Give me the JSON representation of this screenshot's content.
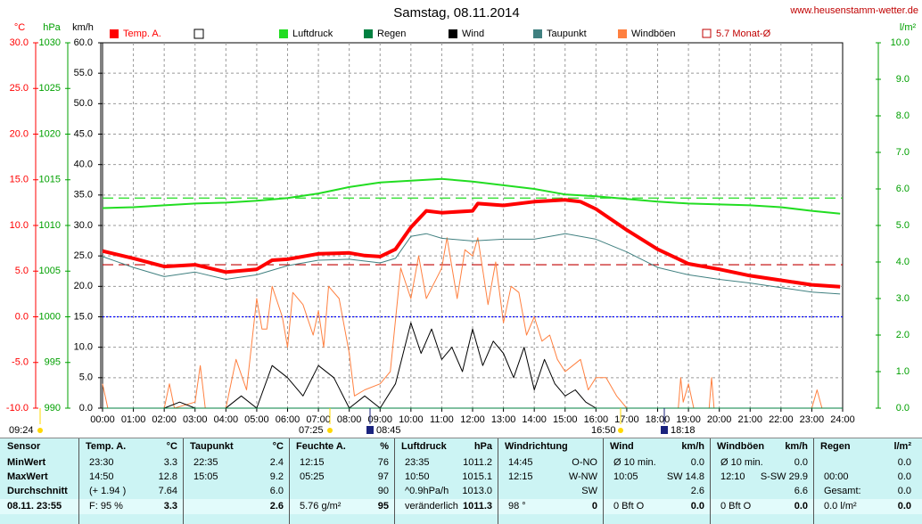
{
  "chart_data": {
    "type": "line",
    "title": "Samstag, 08.11.2014",
    "site": "www.heusenstamm-wetter.de",
    "xlim": [
      0,
      24
    ],
    "xticks": [
      {
        "value": 0,
        "label": "00:00"
      },
      {
        "value": 1,
        "label": "01:00"
      },
      {
        "value": 2,
        "label": "02:00"
      },
      {
        "value": 3,
        "label": "03:00"
      },
      {
        "value": 4,
        "label": "04:00"
      },
      {
        "value": 5,
        "label": "05:00"
      },
      {
        "value": 6,
        "label": "06:00"
      },
      {
        "value": 7,
        "label": "07:00"
      },
      {
        "value": 8,
        "label": "08:00"
      },
      {
        "value": 9,
        "label": "09:00"
      },
      {
        "value": 10,
        "label": "10:00"
      },
      {
        "value": 11,
        "label": "11:00"
      },
      {
        "value": 12,
        "label": "12:00"
      },
      {
        "value": 13,
        "label": "13:00"
      },
      {
        "value": 14,
        "label": "14:00"
      },
      {
        "value": 15,
        "label": "15:00"
      },
      {
        "value": 16,
        "label": "16:00"
      },
      {
        "value": 17,
        "label": "17:00"
      },
      {
        "value": 18,
        "label": "18:00"
      },
      {
        "value": 19,
        "label": "19:00"
      },
      {
        "value": 20,
        "label": "20:00"
      },
      {
        "value": 21,
        "label": "21:00"
      },
      {
        "value": 22,
        "label": "22:00"
      },
      {
        "value": 23,
        "label": "23:00"
      },
      {
        "value": 24,
        "label": "24:00"
      }
    ],
    "grid": true,
    "axes": {
      "temp": {
        "label": "°C",
        "color": "#ff0000",
        "lim": [
          -10,
          30
        ],
        "ticks": [
          {
            "value": 30,
            "label": "30.0"
          },
          {
            "value": 25,
            "label": "25.0"
          },
          {
            "value": 20,
            "label": "20.0"
          },
          {
            "value": 15,
            "label": "15.0"
          },
          {
            "value": 10,
            "label": "10.0"
          },
          {
            "value": 5,
            "label": "5.0"
          },
          {
            "value": 0,
            "label": "0.0"
          },
          {
            "value": -5,
            "label": "-5.0"
          },
          {
            "value": -10,
            "label": "-10.0"
          }
        ]
      },
      "hpa": {
        "label": "hPa",
        "color": "#00a000",
        "lim": [
          990,
          1030
        ],
        "ticks": [
          1030,
          1025,
          1020,
          1015,
          1010,
          1005,
          1000,
          995,
          990
        ]
      },
      "kmh": {
        "label": "km/h",
        "color": "#000000",
        "lim": [
          0,
          60
        ],
        "ticks": [
          {
            "value": 60,
            "label": "60.0"
          },
          {
            "value": 55,
            "label": "55.0"
          },
          {
            "value": 50,
            "label": "50.0"
          },
          {
            "value": 45,
            "label": "45.0"
          },
          {
            "value": 40,
            "label": "40.0"
          },
          {
            "value": 35,
            "label": "35.0"
          },
          {
            "value": 30,
            "label": "30.0"
          },
          {
            "value": 25,
            "label": "25.0"
          },
          {
            "value": 20,
            "label": "20.0"
          },
          {
            "value": 15,
            "label": "15.0"
          },
          {
            "value": 10,
            "label": "10.0"
          },
          {
            "value": 5,
            "label": "5.0"
          },
          {
            "value": 0,
            "label": "0.0"
          }
        ]
      },
      "rain": {
        "label": "l/m²",
        "color": "#00a000",
        "lim": [
          0,
          10
        ],
        "ticks": [
          {
            "value": 10,
            "label": "10.0"
          },
          {
            "value": 9,
            "label": "9.0"
          },
          {
            "value": 8,
            "label": "8.0"
          },
          {
            "value": 7,
            "label": "7.0"
          },
          {
            "value": 6,
            "label": "6.0"
          },
          {
            "value": 5,
            "label": "5.0"
          },
          {
            "value": 4,
            "label": "4.0"
          },
          {
            "value": 3,
            "label": "3.0"
          },
          {
            "value": 2,
            "label": "2.0"
          },
          {
            "value": 1,
            "label": "1.0"
          },
          {
            "value": 0,
            "label": "0.0"
          }
        ]
      }
    },
    "series": [
      {
        "name": "Windböen",
        "color": "#ff8040",
        "axis": "kmh",
        "width": 1,
        "x": [
          0,
          0.17,
          2,
          2.17,
          2.33,
          3,
          3.17,
          3.33,
          4,
          4.33,
          4.67,
          5,
          5.17,
          5.33,
          5.5,
          5.83,
          6,
          6.17,
          6.5,
          6.83,
          7,
          7.17,
          7.33,
          7.67,
          8,
          8.17,
          8.5,
          9,
          9.33,
          9.67,
          10,
          10.25,
          10.5,
          11,
          11.17,
          11.5,
          11.75,
          12,
          12.17,
          12.5,
          12.75,
          13,
          13.25,
          13.5,
          13.75,
          14,
          14.25,
          14.5,
          14.75,
          15,
          15.25,
          15.5,
          15.75,
          16,
          16.33,
          16.67,
          17,
          18.67,
          18.75,
          18.83,
          19,
          19.17,
          19.67,
          19.75,
          19.83,
          23,
          23.17,
          23.33,
          24
        ],
        "values": [
          4,
          0,
          0,
          4,
          0,
          1,
          7,
          0,
          0,
          8,
          3,
          18,
          13,
          13,
          20,
          15,
          10,
          19,
          17,
          12,
          16,
          10,
          20,
          18,
          9,
          2,
          3,
          4,
          6,
          23,
          18,
          25,
          18,
          23,
          28,
          18,
          26,
          25,
          28,
          17,
          24,
          14,
          20,
          19,
          12,
          15,
          11,
          12,
          8,
          6,
          7,
          8,
          3,
          5,
          5,
          2,
          0,
          0,
          5,
          1,
          4,
          0,
          0,
          5,
          0,
          0,
          3,
          0,
          0
        ]
      },
      {
        "name": "Wind",
        "color": "#000000",
        "axis": "kmh",
        "width": 1,
        "x": [
          0,
          2,
          2.5,
          3,
          4,
          4.5,
          5,
          5.5,
          6,
          6.5,
          7,
          7.5,
          8,
          8.5,
          9,
          9.5,
          10,
          10.33,
          10.67,
          11,
          11.33,
          11.67,
          12,
          12.33,
          12.67,
          13,
          13.33,
          13.67,
          14,
          14.33,
          14.67,
          15,
          15.33,
          15.67,
          16,
          24
        ],
        "values": [
          0,
          0,
          1,
          0,
          0,
          2,
          0,
          7,
          5,
          2,
          7,
          5,
          0,
          2,
          0,
          4,
          14,
          9,
          13,
          8,
          10,
          6,
          13,
          7,
          11,
          9,
          5,
          10,
          3,
          8,
          4,
          2,
          3,
          1,
          0,
          0
        ]
      },
      {
        "name": "Regen",
        "color": "#008040",
        "axis": "rain",
        "width": 1,
        "x": [
          0,
          24
        ],
        "values": [
          0,
          0
        ]
      },
      {
        "name": "Taupunkt",
        "color": "#408080",
        "axis": "temp",
        "width": 1,
        "x": [
          0,
          1,
          2,
          3,
          4,
          5,
          6,
          7,
          8,
          9,
          9.5,
          10,
          10.5,
          11,
          12,
          13,
          14,
          15,
          16,
          17,
          18,
          19,
          20,
          21,
          22,
          23,
          23.92
        ],
        "values": [
          6.6,
          5.4,
          4.4,
          4.9,
          4.1,
          4.6,
          5.6,
          6.2,
          6.3,
          5.9,
          6.4,
          8.8,
          9.1,
          8.6,
          8.3,
          8.5,
          8.5,
          9.1,
          8.5,
          7.1,
          5.4,
          4.6,
          4.1,
          3.7,
          3.2,
          2.7,
          2.5
        ]
      },
      {
        "name": "Luftdruck",
        "color": "#22dd22",
        "axis": "hpa",
        "width": 2,
        "x": [
          0,
          1,
          2,
          3,
          4,
          5,
          6,
          7,
          8,
          9,
          10,
          11,
          12,
          13,
          14,
          15,
          16,
          17,
          18,
          19,
          20,
          21,
          22,
          23,
          23.92
        ],
        "values": [
          1011.9,
          1012.0,
          1012.2,
          1012.4,
          1012.5,
          1012.7,
          1013.0,
          1013.5,
          1014.2,
          1014.7,
          1014.9,
          1015.1,
          1014.8,
          1014.4,
          1014.0,
          1013.4,
          1013.2,
          1012.9,
          1012.6,
          1012.4,
          1012.3,
          1012.2,
          1012.0,
          1011.6,
          1011.3
        ]
      },
      {
        "name": "Temp. A.",
        "color": "#ff0000",
        "axis": "temp",
        "width": 4,
        "x": [
          0,
          1,
          2,
          3,
          4,
          5,
          5.5,
          6,
          7,
          8,
          8.5,
          9,
          9.5,
          10,
          10.5,
          11,
          12,
          12.17,
          13,
          14,
          15,
          15.5,
          16,
          17,
          18,
          19,
          20,
          21,
          22,
          23,
          23.92
        ],
        "values": [
          7.2,
          6.4,
          5.5,
          5.7,
          4.9,
          5.2,
          6.2,
          6.3,
          6.9,
          7.0,
          6.7,
          6.6,
          7.4,
          9.8,
          11.6,
          11.4,
          11.6,
          12.4,
          12.2,
          12.6,
          12.8,
          12.6,
          11.8,
          9.5,
          7.4,
          5.8,
          5.2,
          4.5,
          4.0,
          3.5,
          3.3
        ]
      }
    ],
    "reference_lines": [
      {
        "name": "5.7 Monat-Ø",
        "value": 5.7,
        "axis": "temp",
        "color": "#c00000",
        "dash": "12 6"
      },
      {
        "value": 1013.0,
        "axis": "hpa",
        "color": "#22dd22",
        "dash": "12 6"
      },
      {
        "value": 0,
        "axis": "temp",
        "color": "#0000ff",
        "dash": "2 2"
      }
    ],
    "sun_times": [
      "09:24",
      "07:25",
      "08:45",
      "16:50",
      "18:18"
    ],
    "table": {
      "sensor": {
        "name": "Sensor",
        "rows": [
          "MinWert",
          "MaxWert",
          "Durchschnitt",
          "08.11. 23:55"
        ]
      },
      "sections": [
        {
          "name": "Temp. A.",
          "unit": "°C",
          "rows": [
            [
              "23:30",
              "3.3"
            ],
            [
              "14:50",
              "12.8"
            ],
            [
              "(+ 1.94 )",
              "7.64"
            ],
            [
              "F: 95 %",
              "3.3"
            ]
          ]
        },
        {
          "name": "Taupunkt",
          "unit": "°C",
          "rows": [
            [
              "22:35",
              "2.4"
            ],
            [
              "15:05",
              "9.2"
            ],
            [
              null,
              "6.0"
            ],
            [
              null,
              "2.6"
            ]
          ]
        },
        {
          "name": "Feuchte A.",
          "unit": "%",
          "rows": [
            [
              "12:15",
              "76"
            ],
            [
              "05:25",
              "97"
            ],
            [
              null,
              "90"
            ],
            [
              "5.76 g/m²",
              "95"
            ]
          ]
        },
        {
          "name": "Luftdruck",
          "unit": "hPa",
          "rows": [
            [
              "23:35",
              "1011.2"
            ],
            [
              "10:50",
              "1015.1"
            ],
            [
              "^0.9hPa/h",
              "1013.0"
            ],
            [
              "veränderlich",
              "1011.3"
            ]
          ]
        },
        {
          "name": "Windrichtung",
          "rows": [
            [
              "14:45",
              "O-NO"
            ],
            [
              "12:15",
              "W-NW"
            ],
            [
              null,
              "SW"
            ],
            [
              "98 °",
              "0"
            ]
          ]
        },
        {
          "name": "Wind",
          "unit": "km/h",
          "rows": [
            [
              "Ø 10 min.",
              "0.0"
            ],
            [
              "10:05",
              "SW 14.8"
            ],
            [
              null,
              "2.6"
            ],
            [
              "0 Bft O",
              "0.0"
            ]
          ]
        },
        {
          "name": "Windböen",
          "unit": "km/h",
          "rows": [
            [
              "Ø 10 min.",
              "0.0"
            ],
            [
              "12:10",
              "S-SW 29.9"
            ],
            [
              null,
              "6.6"
            ],
            [
              "0 Bft O",
              "0.0"
            ]
          ]
        },
        {
          "name": "Regen",
          "unit": "l/m²",
          "rows": [
            [
              null,
              "0.0"
            ],
            [
              "00:00",
              "0.0"
            ],
            [
              "Gesamt:",
              "0.0"
            ],
            [
              "0.0 l/m²",
              "0.0"
            ]
          ]
        }
      ]
    }
  }
}
